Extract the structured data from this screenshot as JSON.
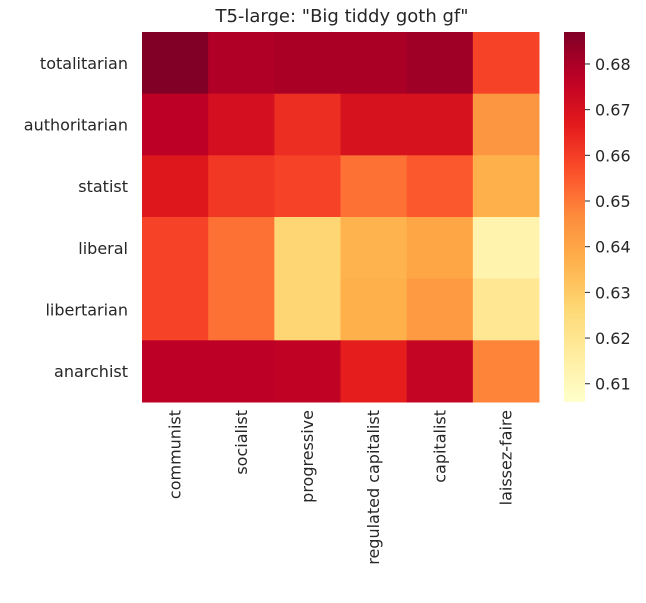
{
  "chart_data": {
    "type": "heatmap",
    "title": "T5-large: \"Big tiddy goth gf\"",
    "xlabel": "",
    "ylabel": "",
    "x_categories": [
      "communist",
      "socialist",
      "progressive",
      "regulated capitalist",
      "capitalist",
      "laissez-faire"
    ],
    "y_categories": [
      "totalitarian",
      "authoritarian",
      "statist",
      "liberal",
      "libertarian",
      "anarchist"
    ],
    "values": [
      [
        0.687,
        0.679,
        0.68,
        0.68,
        0.682,
        0.659
      ],
      [
        0.677,
        0.671,
        0.663,
        0.67,
        0.67,
        0.644
      ],
      [
        0.668,
        0.661,
        0.659,
        0.651,
        0.655,
        0.637
      ],
      [
        0.659,
        0.651,
        0.627,
        0.636,
        0.64,
        0.613
      ],
      [
        0.659,
        0.651,
        0.627,
        0.637,
        0.643,
        0.619
      ],
      [
        0.677,
        0.677,
        0.676,
        0.666,
        0.675,
        0.648
      ]
    ],
    "colorbar": {
      "min": 0.606,
      "max": 0.687,
      "ticks": [
        0.61,
        0.62,
        0.63,
        0.64,
        0.65,
        0.66,
        0.67,
        0.68
      ],
      "tick_labels": [
        "0.61",
        "0.62",
        "0.63",
        "0.64",
        "0.65",
        "0.66",
        "0.67",
        "0.68"
      ]
    },
    "colormap": "YlOrRd",
    "grid": false
  }
}
